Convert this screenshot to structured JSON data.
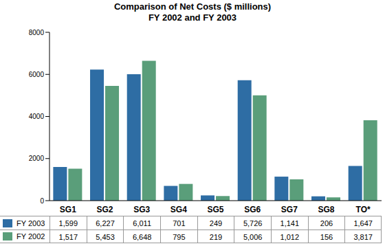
{
  "chart_data": {
    "type": "bar",
    "title": "Comparison of Net Costs ($ millions)",
    "subtitle": "FY 2002 and FY 2003",
    "categories": [
      "SG1",
      "SG2",
      "SG3",
      "SG4",
      "SG5",
      "SG6",
      "SG7",
      "SG8",
      "TO*"
    ],
    "series": [
      {
        "name": "FY 2003",
        "color": "#2e6da4",
        "values": [
          1599,
          6227,
          6011,
          701,
          249,
          5726,
          1141,
          206,
          1647
        ],
        "value_labels": [
          "1,599",
          "6,227",
          "6,011",
          "701",
          "249",
          "5,726",
          "1,141",
          "206",
          "1,647"
        ]
      },
      {
        "name": "FY 2002",
        "color": "#5a9e7a",
        "values": [
          1517,
          5453,
          6648,
          795,
          219,
          5006,
          1012,
          156,
          3817
        ],
        "value_labels": [
          "1,517",
          "5,453",
          "6,648",
          "795",
          "219",
          "5,006",
          "1,012",
          "156",
          "3,817"
        ]
      }
    ],
    "ylim": [
      0,
      8000
    ],
    "yticks": [
      0,
      2000,
      4000,
      6000,
      8000
    ],
    "grid": false
  }
}
